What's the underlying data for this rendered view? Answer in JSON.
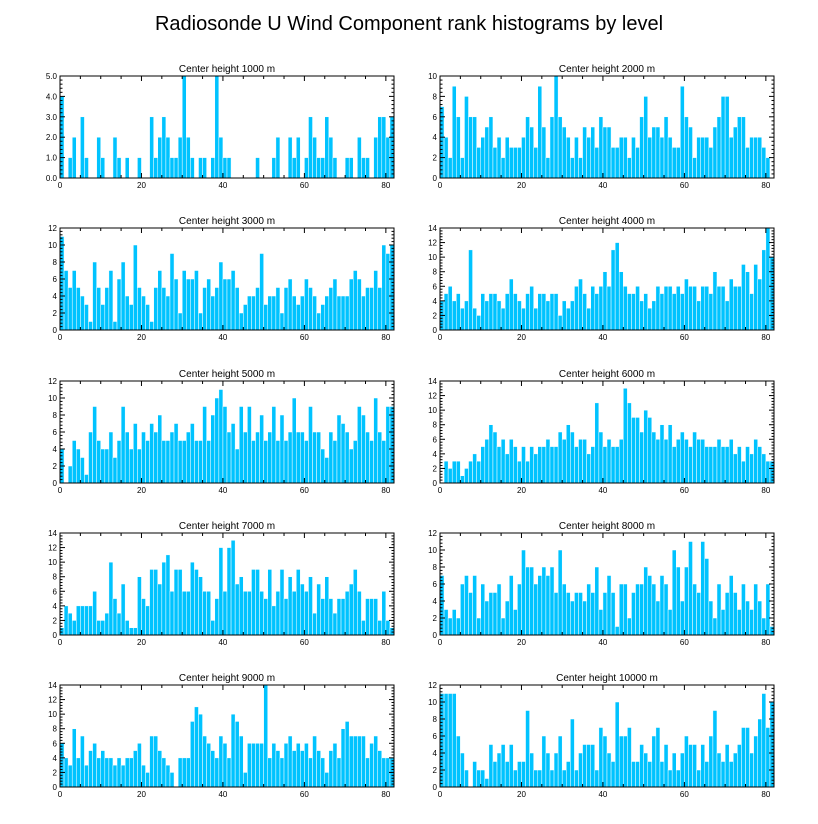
{
  "title": "Radiosonde U Wind Component rank histograms by level",
  "bar_color": "#00c3ff",
  "bar_edge_color": "#ffffff",
  "chart_data": [
    {
      "type": "bar",
      "title": "Center height 1000 m",
      "xlim": [
        0,
        82
      ],
      "ylim": [
        0,
        5
      ],
      "xticks": [
        0,
        20,
        40,
        60,
        80
      ],
      "xtick_labels": [
        "0",
        "20",
        "40",
        "60",
        "80"
      ],
      "yticks": [
        0,
        1,
        2,
        3,
        4,
        5
      ],
      "ytick_labels": [
        "0.0",
        "1.0",
        "2.0",
        "3.0",
        "4.0",
        "5.0"
      ],
      "values": [
        4,
        0,
        1,
        2,
        0,
        3,
        1,
        0,
        0,
        2,
        1,
        0,
        0,
        2,
        1,
        0,
        1,
        0,
        0,
        1,
        0,
        0,
        3,
        1,
        2,
        3,
        2,
        1,
        1,
        2,
        5,
        2,
        1,
        0,
        1,
        1,
        0,
        1,
        5,
        2,
        1,
        1,
        0,
        0,
        0,
        0,
        0,
        0,
        1,
        0,
        0,
        0,
        1,
        2,
        0,
        0,
        2,
        1,
        2,
        0,
        1,
        3,
        2,
        1,
        1,
        3,
        2,
        1,
        0,
        0,
        1,
        1,
        0,
        2,
        1,
        1,
        0,
        2,
        3,
        3,
        2,
        3
      ]
    },
    {
      "type": "bar",
      "title": "Center height 2000 m",
      "xlim": [
        0,
        82
      ],
      "ylim": [
        0,
        10
      ],
      "xticks": [
        0,
        20,
        40,
        60,
        80
      ],
      "xtick_labels": [
        "0",
        "20",
        "40",
        "60",
        "80"
      ],
      "yticks": [
        0,
        2,
        4,
        6,
        8,
        10
      ],
      "ytick_labels": [
        "0",
        "2",
        "4",
        "6",
        "8",
        "10"
      ],
      "values": [
        7,
        4,
        2,
        9,
        6,
        2,
        8,
        6,
        6,
        3,
        4,
        5,
        6,
        3,
        4,
        2,
        4,
        3,
        3,
        3,
        4,
        6,
        5,
        3,
        9,
        5,
        2,
        6,
        10,
        6,
        5,
        4,
        2,
        4,
        2,
        5,
        4,
        5,
        3,
        6,
        5,
        5,
        3,
        3,
        4,
        4,
        2,
        4,
        3,
        6,
        8,
        4,
        5,
        5,
        4,
        6,
        4,
        3,
        3,
        9,
        6,
        5,
        2,
        4,
        4,
        4,
        3,
        5,
        6,
        8,
        8,
        4,
        5,
        6,
        6,
        3,
        4,
        4,
        4,
        3,
        2
      ]
    },
    {
      "type": "bar",
      "title": "Center height 3000 m",
      "xlim": [
        0,
        82
      ],
      "ylim": [
        0,
        12
      ],
      "xticks": [
        0,
        20,
        40,
        60,
        80
      ],
      "xtick_labels": [
        "0",
        "20",
        "40",
        "60",
        "80"
      ],
      "yticks": [
        0,
        2,
        4,
        6,
        8,
        10,
        12
      ],
      "ytick_labels": [
        "0",
        "2",
        "4",
        "6",
        "8",
        "10",
        "12"
      ],
      "values": [
        11,
        7,
        5,
        7,
        5,
        4,
        3,
        1,
        8,
        5,
        3,
        5,
        7,
        1,
        6,
        8,
        4,
        3,
        10,
        5,
        4,
        3,
        1,
        5,
        7,
        5,
        4,
        9,
        6,
        2,
        7,
        6,
        6,
        7,
        2,
        5,
        6,
        4,
        5,
        8,
        6,
        6,
        7,
        5,
        2,
        3,
        4,
        4,
        5,
        9,
        3,
        4,
        4,
        5,
        2,
        5,
        6,
        4,
        3,
        4,
        6,
        5,
        4,
        2,
        3,
        4,
        5,
        6,
        4,
        4,
        4,
        6,
        7,
        6,
        4,
        5,
        5,
        7,
        5,
        10,
        9,
        10
      ]
    },
    {
      "type": "bar",
      "title": "Center height 4000 m",
      "xlim": [
        0,
        82
      ],
      "ylim": [
        0,
        14
      ],
      "xticks": [
        0,
        20,
        40,
        60,
        80
      ],
      "xtick_labels": [
        "0",
        "20",
        "40",
        "60",
        "80"
      ],
      "yticks": [
        0,
        2,
        4,
        6,
        8,
        10,
        12,
        14
      ],
      "ytick_labels": [
        "0",
        "2",
        "4",
        "6",
        "8",
        "10",
        "12",
        "14"
      ],
      "values": [
        4,
        5,
        6,
        4,
        5,
        3,
        4,
        11,
        3,
        2,
        5,
        4,
        5,
        5,
        4,
        3,
        5,
        7,
        5,
        4,
        3,
        5,
        6,
        3,
        5,
        5,
        4,
        5,
        5,
        2,
        4,
        3,
        4,
        6,
        7,
        5,
        3,
        6,
        5,
        6,
        8,
        6,
        11,
        12,
        8,
        6,
        5,
        5,
        6,
        4,
        5,
        3,
        4,
        6,
        5,
        6,
        6,
        5,
        6,
        5,
        7,
        6,
        6,
        4,
        6,
        6,
        5,
        8,
        6,
        6,
        4,
        7,
        6,
        6,
        9,
        8,
        5,
        9,
        7,
        11,
        14,
        10
      ]
    },
    {
      "type": "bar",
      "title": "Center height 5000 m",
      "xlim": [
        0,
        82
      ],
      "ylim": [
        0,
        12
      ],
      "xticks": [
        0,
        20,
        40,
        60,
        80
      ],
      "xtick_labels": [
        "0",
        "20",
        "40",
        "60",
        "80"
      ],
      "yticks": [
        0,
        2,
        4,
        6,
        8,
        10,
        12
      ],
      "ytick_labels": [
        "0",
        "2",
        "4",
        "6",
        "8",
        "10",
        "12"
      ],
      "values": [
        4,
        0,
        2,
        5,
        4,
        3,
        1,
        6,
        9,
        5,
        4,
        4,
        6,
        3,
        5,
        9,
        6,
        4,
        7,
        4,
        6,
        5,
        7,
        6,
        8,
        5,
        5,
        6,
        7,
        5,
        5,
        6,
        7,
        5,
        5,
        9,
        5,
        8,
        10,
        11,
        9,
        6,
        7,
        4,
        9,
        6,
        9,
        5,
        6,
        8,
        5,
        6,
        9,
        5,
        8,
        5,
        6,
        10,
        6,
        6,
        5,
        9,
        6,
        6,
        4,
        3,
        6,
        5,
        8,
        7,
        6,
        4,
        5,
        9,
        8,
        6,
        5,
        10,
        6,
        5,
        9,
        9
      ]
    },
    {
      "type": "bar",
      "title": "Center height 6000 m",
      "xlim": [
        0,
        82
      ],
      "ylim": [
        0,
        14
      ],
      "xticks": [
        0,
        20,
        40,
        60,
        80
      ],
      "xtick_labels": [
        "0",
        "20",
        "40",
        "60",
        "80"
      ],
      "yticks": [
        0,
        2,
        4,
        6,
        8,
        10,
        12,
        14
      ],
      "ytick_labels": [
        "0",
        "2",
        "4",
        "6",
        "8",
        "10",
        "12",
        "14"
      ],
      "values": [
        0,
        3,
        2,
        3,
        3,
        1,
        2,
        3,
        4,
        3,
        5,
        6,
        8,
        7,
        5,
        6,
        4,
        6,
        5,
        3,
        5,
        3,
        5,
        4,
        5,
        5,
        6,
        5,
        5,
        7,
        6,
        8,
        7,
        5,
        6,
        6,
        4,
        5,
        11,
        7,
        5,
        6,
        5,
        5,
        6,
        13,
        11,
        9,
        9,
        7,
        10,
        9,
        7,
        6,
        8,
        6,
        8,
        5,
        6,
        7,
        6,
        5,
        7,
        6,
        6,
        5,
        5,
        5,
        6,
        5,
        5,
        6,
        4,
        5,
        3,
        5,
        4,
        6,
        5,
        4,
        3,
        3
      ]
    },
    {
      "type": "bar",
      "title": "Center height 7000 m",
      "xlim": [
        0,
        82
      ],
      "ylim": [
        0,
        14
      ],
      "xticks": [
        0,
        20,
        40,
        60,
        80
      ],
      "xtick_labels": [
        "0",
        "20",
        "40",
        "60",
        "80"
      ],
      "yticks": [
        0,
        2,
        4,
        6,
        8,
        10,
        12,
        14
      ],
      "ytick_labels": [
        "0",
        "2",
        "4",
        "6",
        "8",
        "10",
        "12",
        "14"
      ],
      "values": [
        1,
        4,
        3,
        2,
        4,
        4,
        4,
        4,
        6,
        2,
        2,
        3,
        10,
        5,
        3,
        7,
        2,
        1,
        1,
        8,
        5,
        4,
        9,
        9,
        7,
        10,
        11,
        6,
        9,
        9,
        6,
        6,
        10,
        9,
        8,
        6,
        6,
        2,
        5,
        12,
        6,
        12,
        13,
        7,
        8,
        6,
        6,
        9,
        9,
        6,
        5,
        9,
        4,
        6,
        9,
        5,
        8,
        6,
        9,
        7,
        6,
        8,
        3,
        7,
        5,
        8,
        5,
        3,
        5,
        5,
        6,
        7,
        9,
        6,
        2,
        5,
        5,
        5,
        2,
        6,
        2,
        1
      ]
    },
    {
      "type": "bar",
      "title": "Center height 8000 m",
      "xlim": [
        0,
        82
      ],
      "ylim": [
        0,
        12
      ],
      "xticks": [
        0,
        20,
        40,
        60,
        80
      ],
      "xtick_labels": [
        "0",
        "20",
        "40",
        "60",
        "80"
      ],
      "yticks": [
        0,
        2,
        4,
        6,
        8,
        10,
        12
      ],
      "ytick_labels": [
        "0",
        "2",
        "4",
        "6",
        "8",
        "10",
        "12"
      ],
      "values": [
        7,
        3,
        2,
        3,
        2,
        6,
        7,
        5,
        7,
        2,
        6,
        4,
        5,
        5,
        6,
        2,
        4,
        7,
        3,
        6,
        10,
        8,
        8,
        6,
        7,
        8,
        7,
        8,
        5,
        10,
        6,
        5,
        4,
        5,
        5,
        4,
        6,
        5,
        8,
        3,
        5,
        7,
        5,
        1,
        6,
        6,
        2,
        5,
        6,
        6,
        8,
        7,
        6,
        4,
        7,
        6,
        3,
        10,
        8,
        4,
        8,
        11,
        6,
        5,
        11,
        9,
        4,
        2,
        6,
        3,
        5,
        7,
        5,
        3,
        6,
        4,
        3,
        6,
        4,
        2,
        6,
        1
      ]
    },
    {
      "type": "bar",
      "title": "Center height 9000 m",
      "xlim": [
        0,
        82
      ],
      "ylim": [
        0,
        14
      ],
      "xticks": [
        0,
        20,
        40,
        60,
        80
      ],
      "xtick_labels": [
        "0",
        "20",
        "40",
        "60",
        "80"
      ],
      "yticks": [
        0,
        2,
        4,
        6,
        8,
        10,
        12,
        14
      ],
      "ytick_labels": [
        "0",
        "2",
        "4",
        "6",
        "8",
        "10",
        "12",
        "14"
      ],
      "values": [
        6,
        4,
        3,
        8,
        4,
        7,
        3,
        5,
        6,
        4,
        5,
        4,
        4,
        3,
        4,
        3,
        4,
        4,
        5,
        6,
        3,
        2,
        7,
        7,
        5,
        4,
        3,
        2,
        0,
        4,
        4,
        4,
        9,
        11,
        10,
        7,
        6,
        5,
        4,
        7,
        6,
        4,
        10,
        9,
        7,
        2,
        6,
        6,
        6,
        6,
        14,
        4,
        6,
        5,
        4,
        6,
        7,
        5,
        6,
        5,
        6,
        4,
        7,
        5,
        4,
        2,
        5,
        6,
        4,
        8,
        9,
        7,
        7,
        7,
        7,
        4,
        6,
        7,
        5,
        4,
        4,
        4
      ]
    },
    {
      "type": "bar",
      "title": "Center height 10000 m",
      "xlim": [
        0,
        82
      ],
      "ylim": [
        0,
        12
      ],
      "xticks": [
        0,
        20,
        40,
        60,
        80
      ],
      "xtick_labels": [
        "0",
        "20",
        "40",
        "60",
        "80"
      ],
      "yticks": [
        0,
        2,
        4,
        6,
        8,
        10,
        12
      ],
      "ytick_labels": [
        "0",
        "2",
        "4",
        "6",
        "8",
        "10",
        "12"
      ],
      "values": [
        11,
        11,
        11,
        11,
        6,
        4,
        2,
        0,
        3,
        2,
        2,
        1,
        5,
        3,
        4,
        5,
        3,
        5,
        2,
        3,
        3,
        9,
        4,
        2,
        2,
        6,
        4,
        2,
        4,
        6,
        2,
        3,
        8,
        2,
        4,
        5,
        5,
        5,
        2,
        7,
        6,
        4,
        3,
        10,
        6,
        6,
        7,
        3,
        3,
        5,
        4,
        3,
        6,
        7,
        3,
        5,
        2,
        4,
        2,
        4,
        6,
        5,
        5,
        2,
        5,
        3,
        6,
        9,
        4,
        3,
        5,
        3,
        4,
        5,
        7,
        7,
        4,
        6,
        8,
        11,
        7,
        10
      ]
    }
  ]
}
